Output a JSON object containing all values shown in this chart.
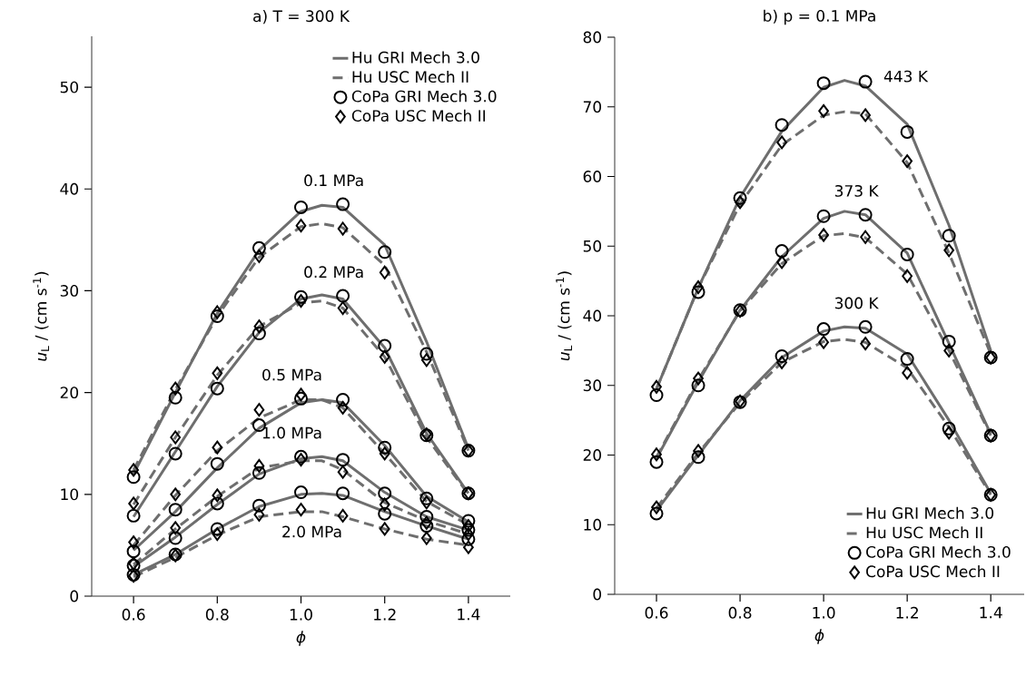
{
  "chart_data": [
    {
      "type": "line",
      "title": "a) T = 300 K",
      "xlabel": "*ϕ*",
      "ylabel": "*u*$_{L}$ / (cm s$^{-1}$)",
      "xlim": [
        0.5,
        1.5
      ],
      "xticks": [
        0.6,
        0.8,
        {
          "value": 1.0,
          "label": "1.0"
        },
        1.2,
        1.4
      ],
      "ylim": [
        0,
        55
      ],
      "yticks": [
        0,
        10,
        20,
        30,
        40,
        50
      ],
      "grid": false,
      "legend": "top right",
      "x": [
        0.6,
        0.7,
        0.8,
        0.9,
        1.0,
        1.1,
        1.2,
        1.3,
        1.4
      ],
      "annotations": [
        "0.1 MPa",
        "0.2 MPa",
        "0.5 MPa",
        "1.0 MPa",
        "2.0 MPa"
      ],
      "series": [
        {
          "name": "Hu GRI Mech 3.0",
          "color": "#6e6e6e",
          "line_style": "solid",
          "x": [
            0.6,
            0.7,
            0.8,
            0.9,
            1.0,
            1.05,
            1.1,
            1.2,
            1.3,
            1.4
          ],
          "values": [
            12.0,
            20.0,
            27.8,
            34.0,
            37.8,
            38.4,
            38.2,
            34.5,
            25.0,
            14.5
          ]
        },
        {
          "name": "Hu USC Mech II",
          "color": "#6e6e6e",
          "line_style": "dashed",
          "x": [
            0.6,
            0.7,
            0.8,
            0.9,
            1.0,
            1.05,
            1.1,
            1.2,
            1.3,
            1.4
          ],
          "values": [
            12.4,
            20.3,
            27.5,
            33.3,
            36.3,
            36.6,
            36.2,
            32.5,
            24.0,
            14.3
          ]
        },
        {
          "type": "scatter",
          "name": "CoPa GRI Mech 3.0",
          "color": "#000000",
          "marker": "circle",
          "values": [
            11.7,
            19.5,
            27.5,
            34.2,
            38.2,
            38.5,
            33.8,
            23.8,
            14.3
          ]
        },
        {
          "type": "scatter",
          "name": "CoPa USC Mech II",
          "color": "#000000",
          "marker": "diamond",
          "values": [
            12.4,
            20.4,
            27.9,
            33.4,
            36.4,
            36.1,
            31.8,
            23.2,
            14.3
          ]
        },
        {
          "color": "#6e6e6e",
          "line_style": "solid",
          "x": [
            0.6,
            0.7,
            0.8,
            0.9,
            1.0,
            1.05,
            1.1,
            1.2,
            1.3,
            1.4
          ],
          "values": [
            7.8,
            14.2,
            20.6,
            25.9,
            29.2,
            29.6,
            29.2,
            24.4,
            16.0,
            10.1
          ]
        },
        {
          "color": "#6e6e6e",
          "line_style": "dashed",
          "x": [
            0.6,
            0.7,
            0.8,
            0.9,
            1.0,
            1.05,
            1.1,
            1.2,
            1.3,
            1.4
          ],
          "values": [
            9.0,
            15.6,
            21.7,
            26.5,
            28.8,
            29.0,
            28.3,
            23.5,
            15.6,
            10.0
          ]
        },
        {
          "type": "scatter",
          "color": "#000000",
          "marker": "circle",
          "values": [
            7.9,
            14.0,
            20.4,
            25.8,
            29.4,
            29.5,
            24.6,
            15.8,
            10.1
          ]
        },
        {
          "type": "scatter",
          "color": "#000000",
          "marker": "diamond",
          "values": [
            9.1,
            15.6,
            21.9,
            26.5,
            29.0,
            28.3,
            23.5,
            15.9,
            10.1
          ]
        },
        {
          "color": "#6e6e6e",
          "line_style": "solid",
          "x": [
            0.6,
            0.7,
            0.8,
            0.9,
            1.0,
            1.05,
            1.1,
            1.2,
            1.3,
            1.4
          ],
          "values": [
            4.5,
            8.3,
            12.6,
            16.5,
            19.0,
            19.3,
            19.0,
            14.8,
            9.8,
            7.3
          ]
        },
        {
          "color": "#6e6e6e",
          "line_style": "dashed",
          "x": [
            0.6,
            0.7,
            0.8,
            0.9,
            1.0,
            1.05,
            1.1,
            1.2,
            1.3,
            1.4
          ],
          "values": [
            5.0,
            9.9,
            14.3,
            17.5,
            19.3,
            19.3,
            18.5,
            14.0,
            9.3,
            7.0
          ]
        },
        {
          "type": "scatter",
          "color": "#000000",
          "marker": "circle",
          "values": [
            4.4,
            8.5,
            13.0,
            16.8,
            19.4,
            19.3,
            14.6,
            9.6,
            7.4
          ]
        },
        {
          "type": "scatter",
          "color": "#000000",
          "marker": "diamond",
          "values": [
            5.3,
            10.0,
            14.6,
            18.3,
            19.8,
            18.5,
            14.0,
            9.2,
            6.9
          ]
        },
        {
          "color": "#6e6e6e",
          "line_style": "solid",
          "x": [
            0.6,
            0.7,
            0.8,
            0.9,
            1.0,
            1.05,
            1.1,
            1.2,
            1.3,
            1.4
          ],
          "values": [
            2.9,
            5.8,
            9.0,
            12.0,
            13.5,
            13.7,
            13.3,
            10.2,
            7.8,
            6.5
          ]
        },
        {
          "color": "#6e6e6e",
          "line_style": "dashed",
          "x": [
            0.6,
            0.7,
            0.8,
            0.9,
            1.0,
            1.05,
            1.1,
            1.2,
            1.3,
            1.4
          ],
          "values": [
            3.1,
            6.6,
            9.8,
            12.6,
            13.3,
            13.3,
            12.4,
            9.2,
            7.4,
            6.1
          ]
        },
        {
          "type": "scatter",
          "color": "#000000",
          "marker": "circle",
          "values": [
            3.0,
            5.7,
            9.1,
            12.1,
            13.7,
            13.4,
            10.1,
            7.8,
            6.5
          ]
        },
        {
          "type": "scatter",
          "color": "#000000",
          "marker": "diamond",
          "values": [
            3.2,
            6.7,
            9.9,
            12.8,
            13.4,
            12.2,
            9.0,
            7.2,
            6.1
          ]
        },
        {
          "color": "#6e6e6e",
          "line_style": "solid",
          "x": [
            0.6,
            0.7,
            0.8,
            0.9,
            1.0,
            1.05,
            1.1,
            1.2,
            1.3,
            1.4
          ],
          "values": [
            2.1,
            4.1,
            6.6,
            8.8,
            10.0,
            10.1,
            9.9,
            8.3,
            6.9,
            5.6
          ]
        },
        {
          "color": "#6e6e6e",
          "line_style": "dashed",
          "x": [
            0.6,
            0.7,
            0.8,
            0.9,
            1.0,
            1.05,
            1.1,
            1.2,
            1.3,
            1.4
          ],
          "values": [
            1.9,
            3.8,
            6.0,
            7.8,
            8.3,
            8.3,
            7.8,
            6.6,
            5.6,
            5.0
          ]
        },
        {
          "type": "scatter",
          "color": "#000000",
          "marker": "circle",
          "values": [
            2.1,
            4.1,
            6.6,
            8.9,
            10.2,
            10.1,
            8.1,
            6.9,
            5.6
          ]
        },
        {
          "type": "scatter",
          "color": "#000000",
          "marker": "diamond",
          "values": [
            2.0,
            4.0,
            6.1,
            8.0,
            8.5,
            7.9,
            6.6,
            5.7,
            4.8
          ]
        }
      ]
    },
    {
      "type": "line",
      "title": "b) p = 0.1 MPa",
      "xlabel": "*ϕ*",
      "ylabel": "*u*$_{L}$ / (cm s$^{-1}$)",
      "xlim": [
        0.5,
        1.48
      ],
      "xticks": [
        0.6,
        0.8,
        {
          "value": 1.0,
          "label": "1.0"
        },
        1.2,
        1.4
      ],
      "ylim": [
        0,
        80
      ],
      "yticks": [
        0,
        10,
        20,
        30,
        40,
        50,
        60,
        70,
        80
      ],
      "grid": false,
      "legend": "bottom right",
      "x": [
        0.6,
        0.7,
        0.8,
        0.9,
        1.0,
        1.1,
        1.2,
        1.3,
        1.4
      ],
      "annotations": [
        "443 K",
        "373 K",
        "300 K"
      ],
      "series": [
        {
          "color": "#6e6e6e",
          "line_style": "solid",
          "x": [
            0.6,
            0.7,
            0.8,
            0.9,
            1.0,
            1.05,
            1.1,
            1.2,
            1.3,
            1.4
          ],
          "values": [
            29.5,
            44.0,
            57.0,
            66.5,
            72.8,
            73.8,
            73.0,
            67.5,
            53.0,
            35.0
          ]
        },
        {
          "color": "#6e6e6e",
          "line_style": "dashed",
          "x": [
            0.6,
            0.7,
            0.8,
            0.9,
            1.0,
            1.05,
            1.1,
            1.2,
            1.3,
            1.4
          ],
          "values": [
            29.5,
            44.0,
            56.0,
            64.5,
            68.8,
            69.3,
            69.0,
            62.0,
            49.0,
            34.5
          ]
        },
        {
          "type": "scatter",
          "color": "#000000",
          "marker": "circle",
          "values": [
            28.6,
            43.4,
            56.9,
            67.4,
            73.4,
            73.6,
            66.4,
            51.5,
            34.0
          ]
        },
        {
          "type": "scatter",
          "color": "#000000",
          "marker": "diamond",
          "values": [
            29.8,
            44.1,
            56.3,
            64.9,
            69.4,
            68.8,
            62.2,
            49.4,
            34.0
          ]
        },
        {
          "color": "#6e6e6e",
          "line_style": "solid",
          "x": [
            0.6,
            0.7,
            0.8,
            0.9,
            1.0,
            1.05,
            1.1,
            1.2,
            1.3,
            1.4
          ],
          "values": [
            19.5,
            30.5,
            40.8,
            48.5,
            54.0,
            55.0,
            54.5,
            49.0,
            36.0,
            23.0
          ]
        },
        {
          "color": "#6e6e6e",
          "line_style": "dashed",
          "x": [
            0.6,
            0.7,
            0.8,
            0.9,
            1.0,
            1.05,
            1.1,
            1.2,
            1.3,
            1.4
          ],
          "values": [
            19.7,
            30.8,
            40.7,
            47.5,
            51.5,
            51.8,
            51.2,
            46.0,
            35.0,
            22.8
          ]
        },
        {
          "type": "scatter",
          "color": "#000000",
          "marker": "circle",
          "values": [
            19.0,
            30.0,
            40.8,
            49.3,
            54.3,
            54.5,
            48.8,
            36.3,
            22.8
          ]
        },
        {
          "type": "scatter",
          "color": "#000000",
          "marker": "diamond",
          "values": [
            20.1,
            31.0,
            40.7,
            47.7,
            51.6,
            51.3,
            45.7,
            35.0,
            22.8
          ]
        },
        {
          "name": "Hu GRI Mech 3.0",
          "color": "#6e6e6e",
          "line_style": "solid",
          "x": [
            0.6,
            0.7,
            0.8,
            0.9,
            1.0,
            1.05,
            1.1,
            1.2,
            1.3,
            1.4
          ],
          "values": [
            12.0,
            20.0,
            27.8,
            34.0,
            37.8,
            38.4,
            38.2,
            34.5,
            25.0,
            14.5
          ]
        },
        {
          "name": "Hu USC Mech II",
          "color": "#6e6e6e",
          "line_style": "dashed",
          "x": [
            0.6,
            0.7,
            0.8,
            0.9,
            1.0,
            1.05,
            1.1,
            1.2,
            1.3,
            1.4
          ],
          "values": [
            12.4,
            20.3,
            27.5,
            33.3,
            36.3,
            36.6,
            36.2,
            32.5,
            24.0,
            14.3
          ]
        },
        {
          "type": "scatter",
          "name": "CoPa GRI Mech 3.0",
          "color": "#000000",
          "marker": "circle",
          "values": [
            11.6,
            19.7,
            27.6,
            34.2,
            38.1,
            38.4,
            33.8,
            23.8,
            14.3
          ]
        },
        {
          "type": "scatter",
          "name": "CoPa USC Mech II",
          "color": "#000000",
          "marker": "diamond",
          "values": [
            12.5,
            20.6,
            27.7,
            33.3,
            36.2,
            36.0,
            31.8,
            23.2,
            14.3
          ]
        }
      ]
    }
  ]
}
